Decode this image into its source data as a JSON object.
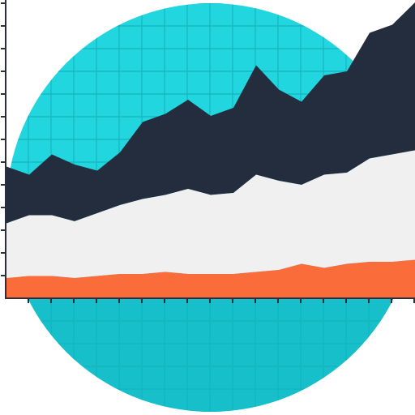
{
  "colors": {
    "background": "#ffffff",
    "circle_top": "#22d6df",
    "circle_bottom": "#16bfc9",
    "grid_line": "#14b4be",
    "axis": "#2a2f3a",
    "series_top": "#232d3d",
    "series_middle": "#f0f0f0",
    "series_bottom": "#fb6c3b"
  },
  "icon": "stacked-area-chart-icon",
  "chart_data": {
    "type": "area",
    "stacked": true,
    "grid": true,
    "x": [
      0,
      1,
      2,
      3,
      4,
      5,
      6,
      7,
      8,
      9,
      10,
      11,
      12,
      13,
      14,
      15,
      16,
      17,
      18
    ],
    "series": [
      {
        "values": [
          28,
          20,
          30,
          28,
          21,
          26,
          38,
          40,
          44,
          39,
          42,
          54,
          45,
          41,
          49,
          50,
          62,
          64,
          73
        ]
      },
      {
        "values": [
          27,
          30,
          30,
          28,
          31,
          34,
          37,
          38,
          42,
          39,
          40,
          48,
          44,
          39,
          46,
          45,
          51,
          53,
          54
        ]
      },
      {
        "values": [
          10,
          11,
          11,
          10,
          11,
          12,
          12,
          13,
          12,
          12,
          12,
          13,
          14,
          17,
          15,
          17,
          18,
          18,
          19
        ]
      }
    ]
  }
}
